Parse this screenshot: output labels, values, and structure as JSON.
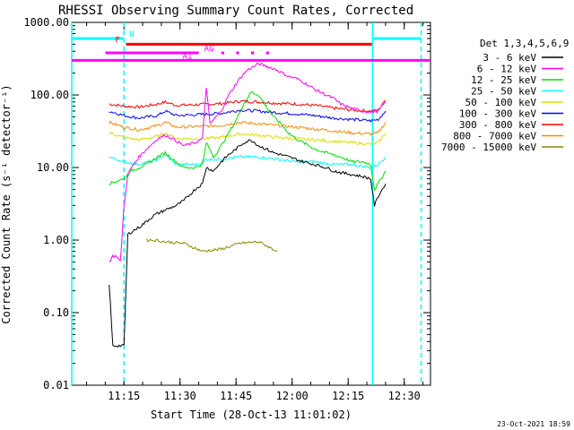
{
  "chart_data": {
    "type": "line",
    "title": "RHESSI Observing Summary Count Rates, Corrected",
    "xlabel": "Start Time (28-Oct-13 11:01:02)",
    "ylabel": "Corrected Count Rate (s⁻¹ detector⁻¹)",
    "yscale": "log",
    "ylim": [
      0.01,
      1000
    ],
    "xlim_minutes": [
      0,
      96
    ],
    "x_tick_labels": [
      "11:15",
      "11:30",
      "11:45",
      "12:00",
      "12:15",
      "12:30"
    ],
    "x_tick_minutes": [
      13.97,
      28.97,
      43.97,
      58.97,
      73.97,
      88.97
    ],
    "y_tick_labels": [
      "0.01",
      "0.10",
      "1.00",
      "10.00",
      "100.00",
      "1000.00"
    ],
    "y_tick_values": [
      0.01,
      0.1,
      1,
      10,
      100,
      1000
    ],
    "footer_date": "23-Oct-2021 18:59",
    "legend": {
      "position": "right",
      "header": "Det 1,3,4,5,6,9",
      "entries": [
        {
          "label": "3 - 6 keV",
          "color": "#000000"
        },
        {
          "label": "6 - 12 keV",
          "color": "#ff00ff"
        },
        {
          "label": "12 - 25 keV",
          "color": "#00dd00"
        },
        {
          "label": "25 - 50 keV",
          "color": "#00ffff"
        },
        {
          "label": "50 - 100 keV",
          "color": "#dddd00"
        },
        {
          "label": "100 - 300 keV",
          "color": "#0000ff"
        },
        {
          "label": "300 - 800 keV",
          "color": "#ff0000"
        },
        {
          "label": "800 - 7000 keV",
          "color": "#ff8800"
        },
        {
          "label": "7000 - 15000 keV",
          "color": "#888800"
        }
      ]
    },
    "flag_bars": [
      {
        "label": "N",
        "color": "#00ffff",
        "level": 600,
        "segments": [
          [
            0,
            13.97
          ],
          [
            80.5,
            93.5
          ]
        ]
      },
      {
        "label": "F",
        "color": "#ff0000",
        "level": 500,
        "segments": [
          [
            14.5,
            80.3
          ]
        ]
      },
      {
        "label": "AG",
        "color": "#ff00ff",
        "level": 380,
        "segments": [
          [
            9,
            34
          ],
          [
            40,
            40.8
          ],
          [
            44,
            44.8
          ],
          [
            48,
            48.8
          ],
          [
            52,
            52.8
          ]
        ]
      },
      {
        "label": "A1",
        "color": "#ff00ff",
        "level": 300,
        "segments": [
          [
            0,
            96
          ]
        ]
      }
    ],
    "vertical_markers": [
      {
        "minute": 0,
        "style": "solid"
      },
      {
        "minute": 13.97,
        "style": "dashed"
      },
      {
        "minute": 80.5,
        "style": "solid"
      },
      {
        "minute": 93.5,
        "style": "dashed"
      }
    ],
    "series": [
      {
        "name": "300 - 800 keV",
        "color": "#ff0000",
        "x": [
          10,
          14,
          18,
          23,
          25,
          28,
          35,
          40,
          45,
          50,
          55,
          60,
          65,
          70,
          75,
          80,
          82,
          84
        ],
        "y": [
          75,
          70,
          68,
          75,
          80,
          72,
          74,
          76,
          82,
          80,
          77,
          75,
          72,
          66,
          62,
          60,
          62,
          85
        ]
      },
      {
        "name": "100 - 300 keV",
        "color": "#0000ff",
        "x": [
          10,
          14,
          18,
          23,
          25,
          28,
          35,
          40,
          45,
          50,
          55,
          60,
          65,
          70,
          75,
          80,
          82,
          84
        ],
        "y": [
          60,
          52,
          48,
          52,
          60,
          52,
          54,
          56,
          62,
          60,
          57,
          55,
          52,
          48,
          46,
          44,
          46,
          60
        ]
      },
      {
        "name": "800 - 7000 keV",
        "color": "#ff8800",
        "x": [
          10,
          14,
          18,
          23,
          25,
          28,
          35,
          40,
          45,
          50,
          55,
          60,
          65,
          70,
          75,
          80,
          82,
          84
        ],
        "y": [
          42,
          36,
          33,
          38,
          42,
          36,
          37,
          38,
          42,
          40,
          38,
          36,
          34,
          32,
          30,
          29,
          30,
          42
        ]
      },
      {
        "name": "50 - 100 keV",
        "color": "#dddd00",
        "x": [
          10,
          14,
          18,
          23,
          25,
          28,
          35,
          40,
          45,
          50,
          55,
          60,
          65,
          70,
          75,
          80,
          82,
          84
        ],
        "y": [
          30,
          26,
          24,
          27,
          30,
          25,
          25,
          26,
          29,
          28,
          26,
          25,
          24,
          23,
          22,
          21,
          22,
          30
        ]
      },
      {
        "name": "25 - 50 keV",
        "color": "#00ffff",
        "x": [
          10,
          14,
          18,
          23,
          25,
          28,
          34,
          36,
          40,
          45,
          50,
          55,
          60,
          65,
          70,
          75,
          80,
          82,
          84
        ],
        "y": [
          14,
          12,
          11,
          13,
          15,
          11,
          11,
          13,
          13,
          14,
          14,
          13,
          12,
          12,
          11,
          11,
          10,
          11,
          14
        ]
      },
      {
        "name": "12 - 25 keV",
        "color": "#00dd00",
        "x": [
          10,
          12,
          14,
          16,
          18,
          20,
          23,
          25,
          27,
          30,
          33,
          35,
          36,
          38,
          40,
          42,
          44,
          46,
          48,
          50,
          52,
          54,
          56,
          58,
          60,
          62,
          65,
          68,
          70,
          72,
          75,
          78,
          80,
          81,
          82,
          84
        ],
        "y": [
          6,
          6.5,
          7,
          9,
          10,
          11,
          14,
          16,
          13,
          10,
          10,
          11,
          22,
          14,
          20,
          30,
          45,
          75,
          110,
          100,
          70,
          50,
          40,
          30,
          25,
          22,
          18,
          16,
          15,
          14,
          12,
          12,
          11,
          5,
          6,
          9
        ]
      },
      {
        "name": "6 - 12 keV",
        "color": "#ff00ff",
        "x": [
          10,
          11,
          12,
          13,
          14,
          15,
          16,
          18,
          20,
          23,
          25,
          27,
          30,
          33,
          35,
          36,
          37,
          40,
          42,
          45,
          47,
          50,
          52,
          55,
          58,
          60,
          62,
          65,
          68,
          70,
          72,
          75,
          78,
          80,
          82,
          84
        ],
        "y": [
          0.5,
          0.6,
          0.6,
          0.5,
          3,
          8,
          10,
          14,
          18,
          25,
          28,
          25,
          20,
          22,
          25,
          130,
          40,
          60,
          100,
          170,
          220,
          270,
          250,
          220,
          180,
          170,
          150,
          120,
          100,
          90,
          75,
          65,
          60,
          58,
          60,
          80
        ]
      },
      {
        "name": "3 - 6 keV",
        "color": "#000000",
        "x": [
          10,
          11,
          13,
          14,
          15,
          16,
          18,
          20,
          22,
          25,
          28,
          30,
          33,
          35,
          36,
          38,
          40,
          42,
          44,
          46,
          48,
          50,
          52,
          54,
          56,
          58,
          60,
          62,
          65,
          68,
          70,
          72,
          75,
          78,
          80,
          81,
          82,
          84
        ],
        "y": [
          0.25,
          0.035,
          0.035,
          0.035,
          1.2,
          1.3,
          1.5,
          1.8,
          2.2,
          2.6,
          3.0,
          3.5,
          5,
          6,
          10,
          9,
          12,
          15,
          18,
          22,
          24,
          20,
          18,
          16,
          15,
          14,
          13,
          12,
          11,
          10,
          9,
          8.5,
          8,
          7.5,
          7,
          3,
          4,
          6
        ]
      },
      {
        "name": "7000 - 15000 keV",
        "color": "#888800",
        "x": [
          20,
          22,
          25,
          30,
          35,
          40,
          45,
          50,
          55
        ],
        "y": [
          1.0,
          1.0,
          0.95,
          0.9,
          0.7,
          0.75,
          0.9,
          0.95,
          0.7
        ]
      }
    ]
  }
}
